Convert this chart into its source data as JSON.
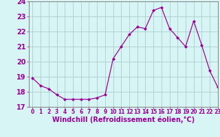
{
  "x": [
    0,
    1,
    2,
    3,
    4,
    5,
    6,
    7,
    8,
    9,
    10,
    11,
    12,
    13,
    14,
    15,
    16,
    17,
    18,
    19,
    20,
    21,
    22,
    23
  ],
  "y": [
    18.9,
    18.4,
    18.2,
    17.8,
    17.5,
    17.5,
    17.5,
    17.5,
    17.6,
    17.8,
    20.2,
    21.0,
    21.8,
    22.3,
    22.2,
    23.4,
    23.6,
    22.2,
    21.6,
    21.0,
    22.7,
    21.1,
    19.4,
    18.3
  ],
  "line_color": "#990099",
  "marker": "D",
  "marker_size": 2,
  "bg_color": "#d8f5f5",
  "grid_color": "#aacccc",
  "xlabel": "Windchill (Refroidissement éolien,°C)",
  "ylim": [
    17,
    24
  ],
  "xlim": [
    -0.5,
    23
  ],
  "yticks": [
    17,
    18,
    19,
    20,
    21,
    22,
    23,
    24
  ],
  "xticks": [
    0,
    1,
    2,
    3,
    4,
    5,
    6,
    7,
    8,
    9,
    10,
    11,
    12,
    13,
    14,
    15,
    16,
    17,
    18,
    19,
    20,
    21,
    22,
    23
  ],
  "tick_color": "#990099",
  "label_color": "#990099",
  "xlabel_fontsize": 7,
  "ytick_fontsize": 7,
  "xtick_fontsize": 5.5,
  "spine_color": "#888888"
}
